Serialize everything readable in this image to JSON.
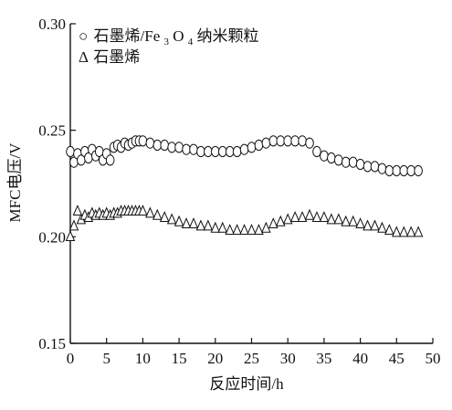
{
  "chart_data": {
    "type": "scatter",
    "xlabel": "反应时间/h",
    "ylabel": "MFC电压/V",
    "xlim": [
      0,
      50
    ],
    "ylim": [
      0.15,
      0.3
    ],
    "xticks": [
      "0",
      "5",
      "10",
      "15",
      "20",
      "25",
      "30",
      "35",
      "40",
      "45",
      "50"
    ],
    "yticks": [
      "0.15",
      "0.20",
      "0.25",
      "0.30"
    ],
    "grid": false,
    "legend_position": "top-left",
    "series": [
      {
        "name": "石墨烯/Fe3O4纳米颗粒",
        "marker": "circle",
        "x": [
          0,
          0.5,
          1,
          1.5,
          2,
          2.5,
          3,
          3.5,
          4,
          4.5,
          5,
          5.5,
          6,
          6.5,
          7,
          7.5,
          8,
          8.5,
          9,
          9.5,
          10,
          11,
          12,
          13,
          14,
          15,
          16,
          17,
          18,
          19,
          20,
          21,
          22,
          23,
          24,
          25,
          26,
          27,
          28,
          29,
          30,
          31,
          32,
          33,
          34,
          35,
          36,
          37,
          38,
          39,
          40,
          41,
          42,
          43,
          44,
          45,
          46,
          47,
          48
        ],
        "y": [
          0.24,
          0.235,
          0.239,
          0.236,
          0.24,
          0.237,
          0.241,
          0.238,
          0.24,
          0.236,
          0.239,
          0.236,
          0.242,
          0.243,
          0.242,
          0.244,
          0.243,
          0.244,
          0.245,
          0.245,
          0.245,
          0.244,
          0.243,
          0.243,
          0.242,
          0.242,
          0.241,
          0.241,
          0.24,
          0.24,
          0.24,
          0.24,
          0.24,
          0.24,
          0.241,
          0.242,
          0.243,
          0.244,
          0.245,
          0.245,
          0.245,
          0.245,
          0.245,
          0.244,
          0.24,
          0.238,
          0.237,
          0.236,
          0.235,
          0.235,
          0.234,
          0.233,
          0.233,
          0.232,
          0.231,
          0.231,
          0.231,
          0.231,
          0.231
        ]
      },
      {
        "name": "石墨烯",
        "marker": "triangle",
        "x": [
          0,
          0.5,
          1,
          1.5,
          2,
          2.5,
          3,
          3.5,
          4,
          4.5,
          5,
          5.5,
          6,
          6.5,
          7,
          7.5,
          8,
          8.5,
          9,
          9.5,
          10,
          11,
          12,
          13,
          14,
          15,
          16,
          17,
          18,
          19,
          20,
          21,
          22,
          23,
          24,
          25,
          26,
          27,
          28,
          29,
          30,
          31,
          32,
          33,
          34,
          35,
          36,
          37,
          38,
          39,
          40,
          41,
          42,
          43,
          44,
          45,
          46,
          47,
          48
        ],
        "y": [
          0.2,
          0.205,
          0.212,
          0.208,
          0.21,
          0.209,
          0.211,
          0.21,
          0.211,
          0.21,
          0.211,
          0.21,
          0.211,
          0.211,
          0.212,
          0.212,
          0.212,
          0.212,
          0.212,
          0.212,
          0.212,
          0.211,
          0.21,
          0.209,
          0.208,
          0.207,
          0.206,
          0.206,
          0.205,
          0.205,
          0.204,
          0.204,
          0.203,
          0.203,
          0.203,
          0.203,
          0.203,
          0.204,
          0.206,
          0.207,
          0.208,
          0.209,
          0.209,
          0.21,
          0.209,
          0.209,
          0.208,
          0.208,
          0.207,
          0.207,
          0.206,
          0.205,
          0.205,
          0.204,
          0.203,
          0.202,
          0.202,
          0.202,
          0.202
        ]
      }
    ]
  },
  "legend": {
    "prefix_symbol_1": "○",
    "label_1_main": "石墨烯/Fe",
    "label_1_sub1": "3",
    "label_1_mid": "O",
    "label_1_sub2": "4",
    "label_1_tail": "纳米颗粒",
    "prefix_symbol_2": "Δ",
    "label_2": "石墨烯"
  }
}
